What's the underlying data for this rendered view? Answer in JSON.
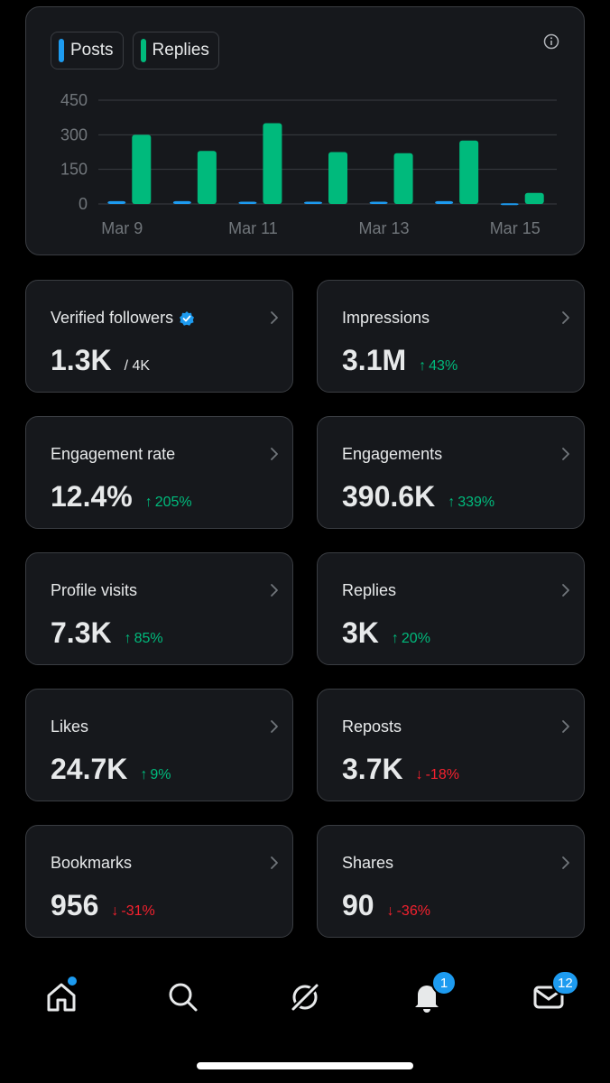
{
  "colors": {
    "posts": "#1d9bf0",
    "replies": "#00ba7c",
    "up": "#00ba7c",
    "down": "#f4212e",
    "accent": "#1d9bf0"
  },
  "chart_legend": {
    "posts_label": "Posts",
    "replies_label": "Replies"
  },
  "chart_data": {
    "type": "bar",
    "categories": [
      "Mar 9",
      "Mar 10",
      "Mar 11",
      "Mar 12",
      "Mar 13",
      "Mar 14",
      "Mar 15"
    ],
    "x_tick_labels": [
      "Mar 9",
      "Mar 11",
      "Mar 13",
      "Mar 15"
    ],
    "y_ticks": [
      "450",
      "300",
      "150",
      "0"
    ],
    "ylim": [
      0,
      450
    ],
    "grid": true,
    "legend": "top-left",
    "series": [
      {
        "name": "Posts",
        "values": [
          12,
          12,
          10,
          10,
          10,
          12,
          3
        ]
      },
      {
        "name": "Replies",
        "values": [
          300,
          230,
          350,
          225,
          220,
          275,
          48
        ]
      }
    ]
  },
  "tiles": [
    {
      "label": "Verified followers",
      "value": "1.3K",
      "sub": "/ 4K",
      "delta": "",
      "dir": "",
      "verified": true
    },
    {
      "label": "Impressions",
      "value": "3.1M",
      "sub": "",
      "delta": "43%",
      "dir": "up"
    },
    {
      "label": "Engagement rate",
      "value": "12.4%",
      "sub": "",
      "delta": "205%",
      "dir": "up"
    },
    {
      "label": "Engagements",
      "value": "390.6K",
      "sub": "",
      "delta": "339%",
      "dir": "up"
    },
    {
      "label": "Profile visits",
      "value": "7.3K",
      "sub": "",
      "delta": "85%",
      "dir": "up"
    },
    {
      "label": "Replies",
      "value": "3K",
      "sub": "",
      "delta": "20%",
      "dir": "up"
    },
    {
      "label": "Likes",
      "value": "24.7K",
      "sub": "",
      "delta": "9%",
      "dir": "up"
    },
    {
      "label": "Reposts",
      "value": "3.7K",
      "sub": "",
      "delta": "-18%",
      "dir": "down"
    },
    {
      "label": "Bookmarks",
      "value": "956",
      "sub": "",
      "delta": "-31%",
      "dir": "down"
    },
    {
      "label": "Shares",
      "value": "90",
      "sub": "",
      "delta": "-36%",
      "dir": "down"
    }
  ],
  "tab_bar": {
    "items": [
      {
        "name": "home",
        "icon": "home-icon",
        "dot": true
      },
      {
        "name": "search",
        "icon": "search-icon"
      },
      {
        "name": "grok",
        "icon": "grok-icon"
      },
      {
        "name": "notifications",
        "icon": "bell-icon",
        "badge": "1"
      },
      {
        "name": "messages",
        "icon": "mail-icon",
        "badge": "12"
      }
    ]
  }
}
